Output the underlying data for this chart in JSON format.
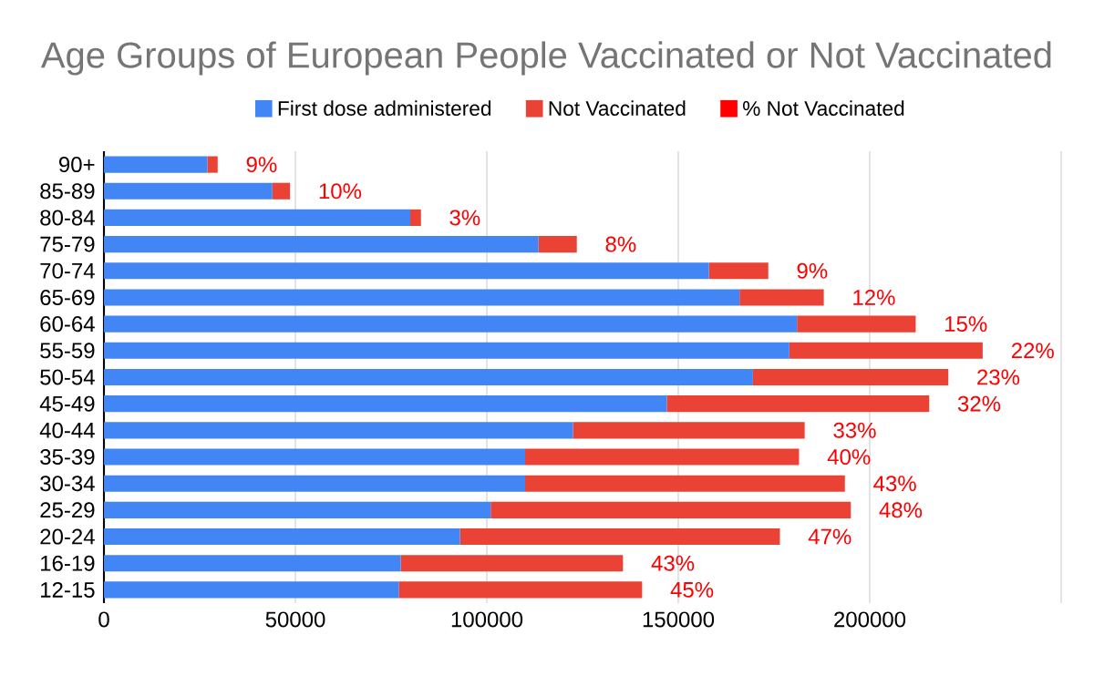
{
  "chart_data": {
    "type": "bar",
    "orientation": "horizontal",
    "stacked": true,
    "title": "Age Groups of European People Vaccinated or Not Vaccinated",
    "categories": [
      "90+",
      "85-89",
      "80-84",
      "75-79",
      "70-74",
      "65-69",
      "60-64",
      "55-59",
      "50-54",
      "45-49",
      "40-44",
      "35-39",
      "30-34",
      "25-29",
      "20-24",
      "16-19",
      "12-15"
    ],
    "series": [
      {
        "name": "First dose administered",
        "color": "#4285f4",
        "values": [
          27000,
          44000,
          80000,
          113500,
          158000,
          166000,
          181000,
          179000,
          169500,
          147000,
          122500,
          110000,
          110000,
          101000,
          93000,
          77500,
          77000
        ]
      },
      {
        "name": "Not Vaccinated",
        "color": "#ea4335",
        "values": [
          2700,
          4600,
          2800,
          10000,
          15500,
          22000,
          31000,
          50500,
          51000,
          68500,
          60500,
          71500,
          83500,
          94000,
          83500,
          58000,
          63500
        ]
      },
      {
        "name": "% Not Vaccinated",
        "color": "#ff0000",
        "values": [
          9,
          10,
          3,
          8,
          9,
          12,
          15,
          22,
          23,
          32,
          33,
          40,
          43,
          48,
          47,
          43,
          45
        ],
        "value_labels": [
          "9%",
          "10%",
          "3%",
          "8%",
          "9%",
          "12%",
          "15%",
          "22%",
          "23%",
          "32%",
          "33%",
          "40%",
          "43%",
          "48%",
          "47%",
          "43%",
          "45%"
        ]
      }
    ],
    "xlim": [
      0,
      250000
    ],
    "xticks": [
      0,
      50000,
      100000,
      150000,
      200000,
      {
        "value": 250000,
        "label": null
      }
    ],
    "grid": "x",
    "legend": "top"
  }
}
